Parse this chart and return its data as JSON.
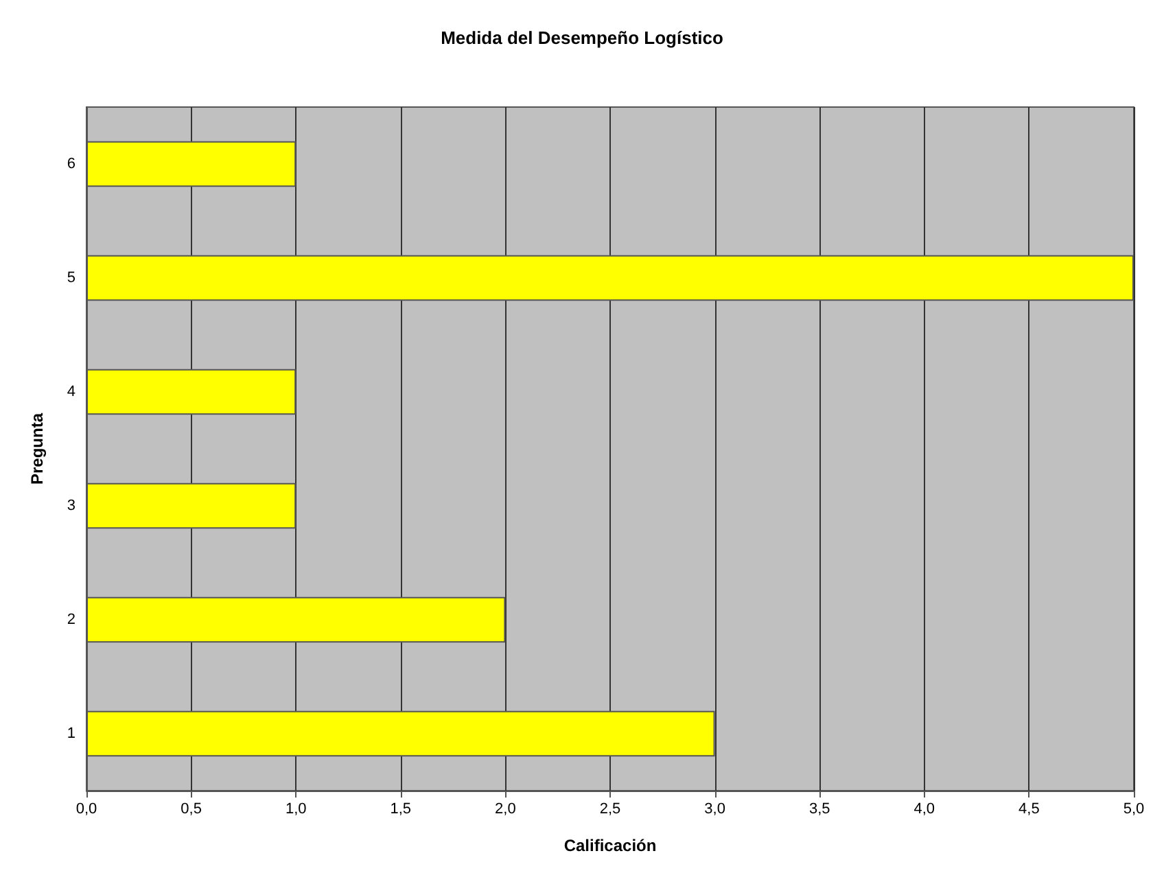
{
  "chart_data": {
    "type": "bar",
    "orientation": "horizontal",
    "title": "Medida del Desempeño Logístico",
    "xlabel": "Calificación",
    "ylabel": "Pregunta",
    "categories": [
      "6",
      "5",
      "4",
      "3",
      "2",
      "1"
    ],
    "values": [
      1,
      5,
      1,
      1,
      2,
      3
    ],
    "color": "#ffff00",
    "xlim": [
      0,
      5
    ],
    "xticks": [
      {
        "value": 0,
        "label": "0,0"
      },
      {
        "value": 0.5,
        "label": "0,5"
      },
      {
        "value": 1,
        "label": "1,0"
      },
      {
        "value": 1.5,
        "label": "1,5"
      },
      {
        "value": 2,
        "label": "2,0"
      },
      {
        "value": 2.5,
        "label": "2,5"
      },
      {
        "value": 3,
        "label": "3,0"
      },
      {
        "value": 3.5,
        "label": "3,5"
      },
      {
        "value": 4,
        "label": "4,0"
      },
      {
        "value": 4.5,
        "label": "4,5"
      },
      {
        "value": 5,
        "label": "5,0"
      }
    ],
    "grid": "x"
  }
}
